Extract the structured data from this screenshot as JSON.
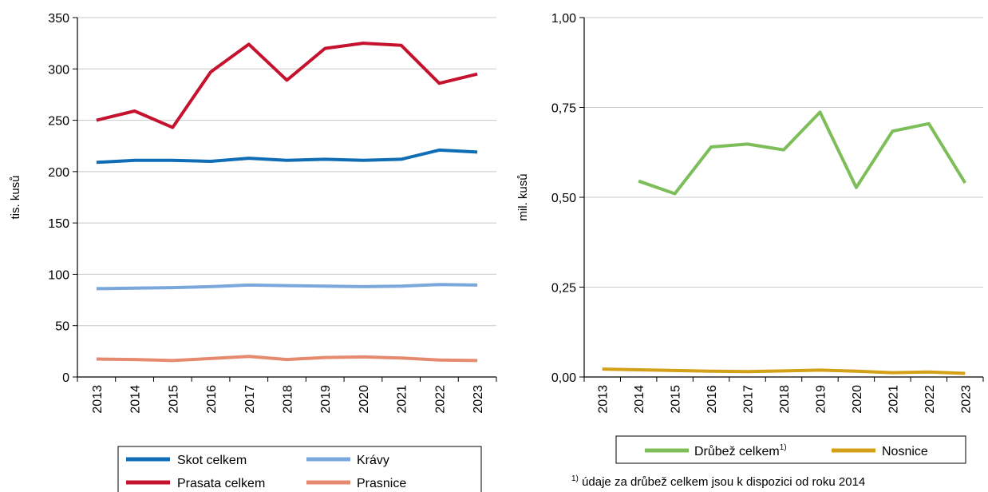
{
  "chart_data": [
    {
      "type": "line",
      "title": "",
      "xlabel": "",
      "ylabel": "tis. kusů",
      "ylim": [
        0,
        350
      ],
      "yticks": [
        "0",
        "50",
        "100",
        "150",
        "200",
        "250",
        "300",
        "350"
      ],
      "x": [
        "2013",
        "2014",
        "2015",
        "2016",
        "2017",
        "2018",
        "2019",
        "2020",
        "2021",
        "2022",
        "2023"
      ],
      "grid": true,
      "legend_position": "bottom",
      "series": [
        {
          "name": "Skot celkem",
          "color": "#0f6db5",
          "values": [
            209,
            211,
            211,
            210,
            213,
            211,
            212,
            211,
            212,
            221,
            219
          ]
        },
        {
          "name": "Krávy",
          "color": "#7aa7dc",
          "values": [
            86,
            86.5,
            87,
            88,
            89.5,
            89,
            88.5,
            88,
            88.5,
            90,
            89.5
          ]
        },
        {
          "name": "Prasata celkem",
          "color": "#c5122e",
          "values": [
            250,
            259,
            243,
            297,
            324,
            289,
            320,
            325,
            323,
            286,
            295
          ]
        },
        {
          "name": "Prasnice",
          "color": "#e58a6f",
          "values": [
            17.5,
            17,
            16,
            18,
            20,
            17,
            19,
            19.5,
            18.5,
            16.5,
            16
          ]
        }
      ]
    },
    {
      "type": "line",
      "title": "",
      "xlabel": "",
      "ylabel": "mil. kusů",
      "ylim": [
        0,
        1
      ],
      "yticks": [
        "0,00",
        "0,25",
        "0,50",
        "0,75",
        "1,00"
      ],
      "x": [
        "2013",
        "2014",
        "2015",
        "2016",
        "2017",
        "2018",
        "2019",
        "2020",
        "2021",
        "2022",
        "2023"
      ],
      "grid": true,
      "legend_position": "bottom",
      "series": [
        {
          "name": "Drůbež celkem",
          "name_sup": "1)",
          "color": "#7dbe5a",
          "values": [
            null,
            0.545,
            0.51,
            0.64,
            0.648,
            0.632,
            0.737,
            0.527,
            0.684,
            0.705,
            0.54
          ]
        },
        {
          "name": "Nosnice",
          "color": "#d4a017",
          "values": [
            0.022,
            0.02,
            0.018,
            0.016,
            0.015,
            0.017,
            0.019,
            0.016,
            0.012,
            0.014,
            0.01
          ]
        }
      ]
    }
  ],
  "footnote": {
    "sup": "1)",
    "text": " údaje za drůbež celkem jsou k dispozici od roku 2014"
  }
}
